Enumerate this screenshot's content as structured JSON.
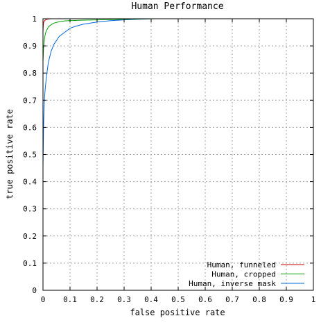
{
  "chart_data": {
    "type": "line",
    "title": "Human Performance",
    "xlabel": "false positive rate",
    "ylabel": "true positive rate",
    "xlim": [
      0,
      1
    ],
    "ylim": [
      0,
      1
    ],
    "xticks": [
      "0",
      "0.1",
      "0.2",
      "0.3",
      "0.4",
      "0.5",
      "0.6",
      "0.7",
      "0.8",
      "0.9",
      "1"
    ],
    "yticks": [
      "0",
      "0.1",
      "0.2",
      "0.3",
      "0.4",
      "0.5",
      "0.6",
      "0.7",
      "0.8",
      "0.9",
      "1"
    ],
    "grid": true,
    "legend_position": "bottom-right",
    "series": [
      {
        "name": "Human, funneled",
        "color": "#cc0000",
        "x": [
          0,
          0.001,
          0.002,
          0.004,
          0.006,
          0.01,
          0.015,
          0.02,
          0.03,
          0.05,
          0.08,
          0.12
        ],
        "y": [
          0.95,
          0.975,
          0.985,
          0.99,
          0.993,
          0.996,
          0.998,
          0.999,
          1.0,
          1.0,
          1.0,
          1.0
        ]
      },
      {
        "name": "Human, cropped",
        "color": "#00a000",
        "x": [
          0,
          0.002,
          0.004,
          0.006,
          0.01,
          0.015,
          0.02,
          0.03,
          0.04,
          0.06,
          0.08,
          0.1,
          0.15,
          0.2,
          0.25,
          0.3,
          0.35,
          0.42
        ],
        "y": [
          0.84,
          0.89,
          0.91,
          0.93,
          0.95,
          0.96,
          0.97,
          0.978,
          0.984,
          0.989,
          0.992,
          0.993,
          0.995,
          0.996,
          0.997,
          0.998,
          0.999,
          1.0
        ]
      },
      {
        "name": "Human, inverse mask",
        "color": "#0066dd",
        "x": [
          0,
          0.002,
          0.004,
          0.006,
          0.008,
          0.012,
          0.016,
          0.02,
          0.03,
          0.04,
          0.05,
          0.06,
          0.08,
          0.1,
          0.12,
          0.15,
          0.2,
          0.25,
          0.3,
          0.35,
          0.4
        ],
        "y": [
          0.45,
          0.6,
          0.67,
          0.71,
          0.74,
          0.78,
          0.81,
          0.84,
          0.88,
          0.905,
          0.92,
          0.935,
          0.95,
          0.965,
          0.972,
          0.98,
          0.988,
          0.993,
          0.996,
          0.998,
          1.0
        ]
      }
    ]
  }
}
